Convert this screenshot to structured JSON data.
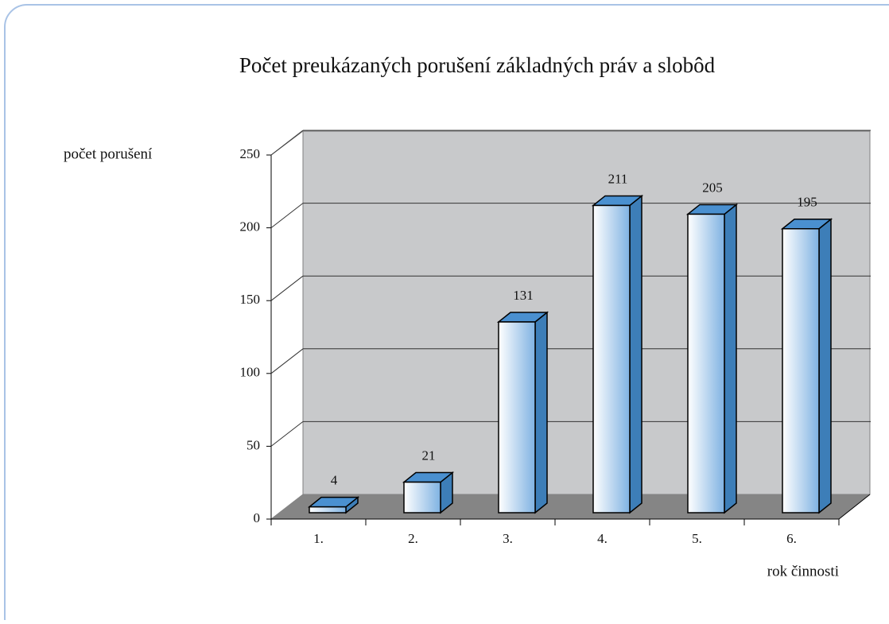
{
  "chart_data": {
    "type": "bar3d",
    "title": "Počet preukázaných porušení základných práv a slobôd",
    "y_label": "počet porušení",
    "x_label": "rok činnosti",
    "categories": [
      "1.",
      "2.",
      "3.",
      "4.",
      "5.",
      "6."
    ],
    "values": [
      4,
      21,
      131,
      211,
      205,
      195
    ],
    "color": "#4a90d0",
    "ylim": [
      0,
      250
    ],
    "yticks": [
      0,
      50,
      100,
      150,
      200,
      250
    ],
    "grid": true
  }
}
